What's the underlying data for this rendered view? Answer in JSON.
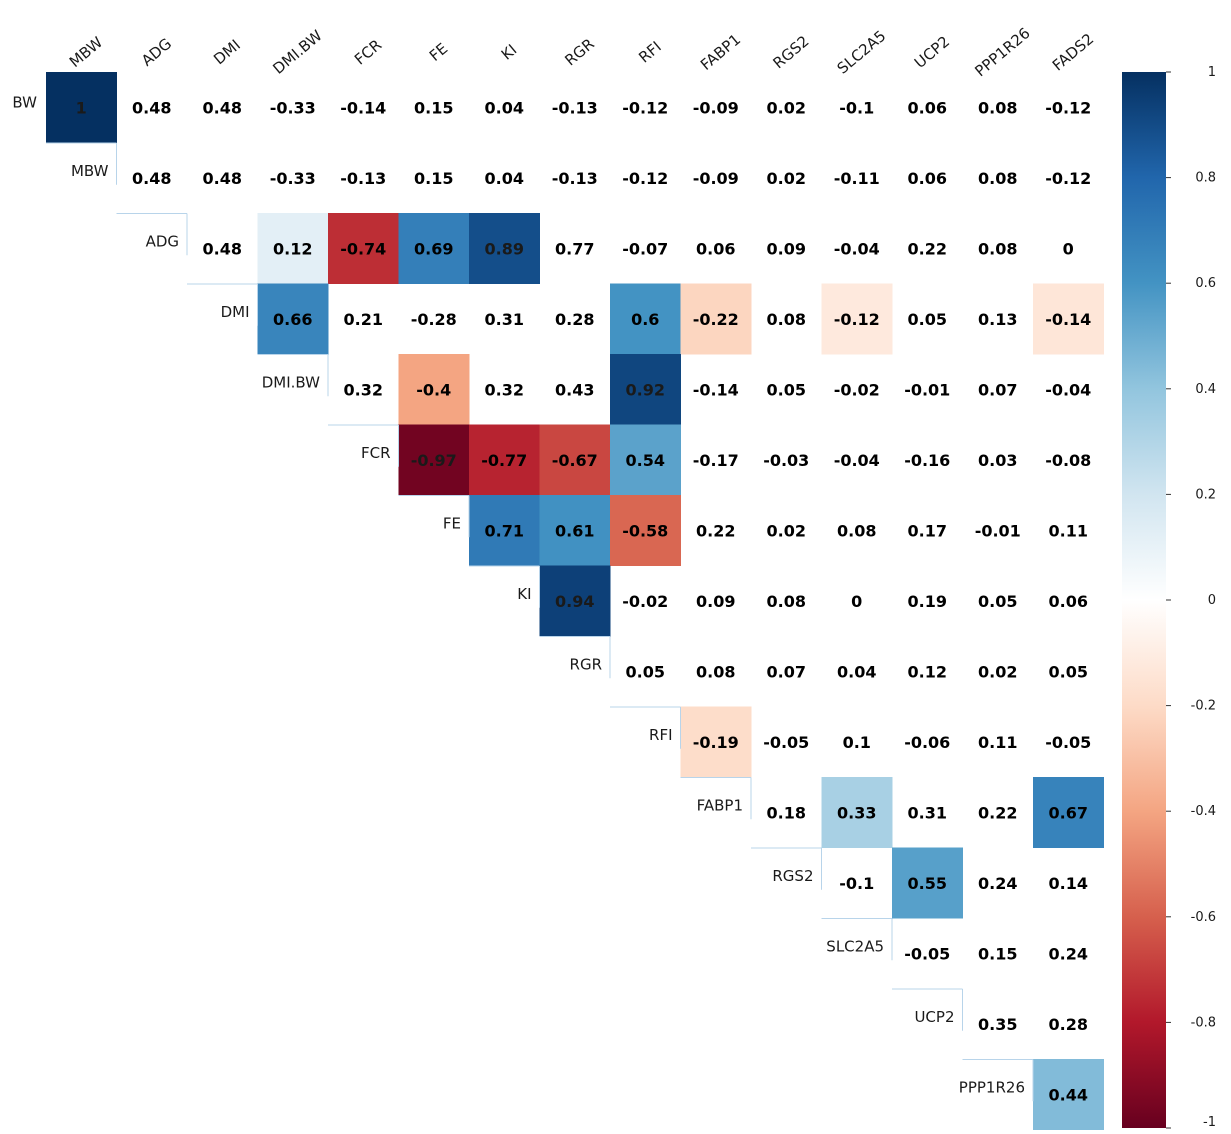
{
  "chart_data": {
    "type": "heatmap",
    "layout": "upper-triangle correlation matrix",
    "column_labels": [
      "MBW",
      "ADG",
      "DMI",
      "DMI.BW",
      "FCR",
      "FE",
      "KI",
      "RGR",
      "RFI",
      "FABP1",
      "RGS2",
      "SLC2A5",
      "UCP2",
      "PPP1R26",
      "FADS2"
    ],
    "row_labels": [
      "BW",
      "MBW",
      "ADG",
      "DMI",
      "DMI.BW",
      "FCR",
      "FE",
      "KI",
      "RGR",
      "RFI",
      "FABP1",
      "RGS2",
      "SLC2A5",
      "UCP2",
      "PPP1R26"
    ],
    "values": [
      [
        1,
        0.48,
        0.48,
        -0.33,
        -0.14,
        0.15,
        0.04,
        -0.13,
        -0.12,
        -0.09,
        0.02,
        -0.1,
        0.06,
        0.08,
        -0.12
      ],
      [
        0.48,
        0.48,
        -0.33,
        -0.13,
        0.15,
        0.04,
        -0.13,
        -0.12,
        -0.09,
        0.02,
        -0.11,
        0.06,
        0.08,
        -0.12
      ],
      [
        0.48,
        0.12,
        -0.74,
        0.69,
        0.89,
        0.77,
        -0.07,
        0.06,
        0.09,
        -0.04,
        0.22,
        0.08,
        0
      ],
      [
        0.66,
        0.21,
        -0.28,
        0.31,
        0.28,
        0.6,
        -0.22,
        0.08,
        -0.12,
        0.05,
        0.13,
        -0.14
      ],
      [
        0.32,
        -0.4,
        0.32,
        0.43,
        0.92,
        -0.14,
        0.05,
        -0.02,
        -0.01,
        0.07,
        -0.04
      ],
      [
        -0.97,
        -0.77,
        -0.67,
        0.54,
        -0.17,
        -0.03,
        -0.04,
        -0.16,
        0.03,
        -0.08
      ],
      [
        0.71,
        0.61,
        -0.58,
        0.22,
        0.02,
        0.08,
        0.17,
        -0.01,
        0.11
      ],
      [
        0.94,
        -0.02,
        0.09,
        0.08,
        0,
        0.19,
        0.05,
        0.06
      ],
      [
        0.05,
        0.08,
        0.07,
        0.04,
        0.12,
        0.02,
        0.05
      ],
      [
        -0.19,
        -0.05,
        0.1,
        -0.06,
        0.11,
        -0.05
      ],
      [
        0.18,
        0.33,
        0.31,
        0.22,
        0.67
      ],
      [
        -0.1,
        0.55,
        0.24,
        0.14
      ],
      [
        -0.05,
        0.15,
        0.24
      ],
      [
        0.35,
        0.28
      ],
      [
        0.44
      ]
    ],
    "value_labels": [
      [
        "1",
        "0.48",
        "0.48",
        "-0.33",
        "-0.14",
        "0.15",
        "0.04",
        "-0.13",
        "-0.12",
        "-0.09",
        "0.02",
        "-0.1",
        "0.06",
        "0.08",
        "-0.12"
      ],
      [
        "0.48",
        "0.48",
        "-0.33",
        "-0.13",
        "0.15",
        "0.04",
        "-0.13",
        "-0.12",
        "-0.09",
        "0.02",
        "-0.11",
        "0.06",
        "0.08",
        "-0.12"
      ],
      [
        "0.48",
        "0.12",
        "-0.74",
        "0.69",
        "0.89",
        "0.77",
        "-0.07",
        "0.06",
        "0.09",
        "-0.04",
        "0.22",
        "0.08",
        "0"
      ],
      [
        "0.66",
        "0.21",
        "-0.28",
        "0.31",
        "0.28",
        "0.6",
        "-0.22",
        "0.08",
        "-0.12",
        "0.05",
        "0.13",
        "-0.14"
      ],
      [
        "0.32",
        "-0.4",
        "0.32",
        "0.43",
        "0.92",
        "-0.14",
        "0.05",
        "-0.02",
        "-0.01",
        "0.07",
        "-0.04"
      ],
      [
        "-0.97",
        "-0.77",
        "-0.67",
        "0.54",
        "-0.17",
        "-0.03",
        "-0.04",
        "-0.16",
        "0.03",
        "-0.08"
      ],
      [
        "0.71",
        "0.61",
        "-0.58",
        "0.22",
        "0.02",
        "0.08",
        "0.17",
        "-0.01",
        "0.11"
      ],
      [
        "0.94",
        "-0.02",
        "0.09",
        "0.08",
        "0",
        "0.19",
        "0.05",
        "0.06"
      ],
      [
        "0.05",
        "0.08",
        "0.07",
        "0.04",
        "0.12",
        "0.02",
        "0.05"
      ],
      [
        "-0.19",
        "-0.05",
        "0.1",
        "-0.06",
        "0.11",
        "-0.05"
      ],
      [
        "0.18",
        "0.33",
        "0.31",
        "0.22",
        "0.67"
      ],
      [
        "-0.1",
        "0.55",
        "0.24",
        "0.14"
      ],
      [
        "-0.05",
        "0.15",
        "0.24"
      ],
      [
        "0.35",
        "0.28"
      ],
      [
        "0.44"
      ]
    ],
    "significant_cells": [
      [
        0,
        0
      ],
      [
        2,
        3
      ],
      [
        2,
        4
      ],
      [
        2,
        5
      ],
      [
        2,
        6
      ],
      [
        3,
        3
      ],
      [
        3,
        8
      ],
      [
        3,
        9
      ],
      [
        3,
        11
      ],
      [
        3,
        14
      ],
      [
        4,
        5
      ],
      [
        4,
        8
      ],
      [
        5,
        5
      ],
      [
        5,
        6
      ],
      [
        5,
        7
      ],
      [
        5,
        8
      ],
      [
        6,
        6
      ],
      [
        6,
        7
      ],
      [
        6,
        8
      ],
      [
        7,
        7
      ],
      [
        9,
        9
      ],
      [
        10,
        11
      ],
      [
        10,
        14
      ],
      [
        11,
        12
      ],
      [
        14,
        14
      ]
    ],
    "color_scale": {
      "min": -1,
      "max": 1,
      "ticks": [
        1,
        0.8,
        0.6,
        0.4,
        0.2,
        0,
        -0.2,
        -0.4,
        -0.6,
        -0.8,
        -1
      ],
      "tick_labels": [
        "1",
        "0.8",
        "0.6",
        "0.4",
        "0.2",
        "0",
        "-0.2",
        "-0.4",
        "-0.6",
        "-0.8",
        "-1"
      ],
      "colors": [
        "#67001f",
        "#b2182b",
        "#d6604d",
        "#f4a582",
        "#fddbc7",
        "#ffffff",
        "#d1e5f0",
        "#92c5de",
        "#4393c3",
        "#2166ac",
        "#053061"
      ]
    },
    "title": "",
    "xlabel": "",
    "ylabel": "",
    "legend": "colorbar-right",
    "grid": false
  }
}
